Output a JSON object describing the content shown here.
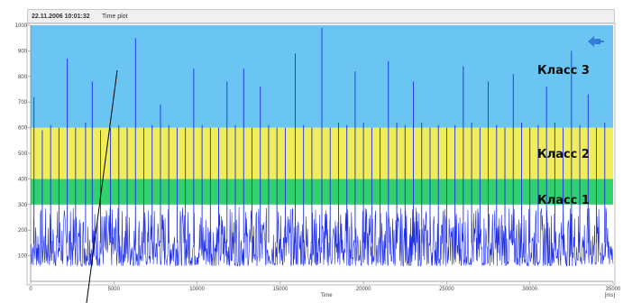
{
  "header": {
    "timestamp": "22.11.2006 10:01:32",
    "plot_title": "Time plot"
  },
  "icon": {
    "name": "rewind-arrow-icon",
    "color": "#2a6fd6"
  },
  "chart_data": {
    "type": "line",
    "title": "",
    "xlabel": "Time",
    "x_unit": "[ms]",
    "ylabel": "",
    "xlim": [
      0,
      35000
    ],
    "ylim": [
      0,
      1000
    ],
    "x_ticks": [
      0,
      5000,
      10000,
      15000,
      20000,
      25000,
      30000,
      35000
    ],
    "y_ticks": [
      100,
      200,
      300,
      400,
      500,
      600,
      700,
      800,
      900,
      1000
    ],
    "x_tick_labels": [
      "0",
      "5000",
      "10000",
      "15000",
      "20000",
      "25000",
      "30000",
      "35000"
    ],
    "y_tick_labels": [
      "100",
      "200",
      "300",
      "400",
      "500",
      "600",
      "700",
      "800",
      "900",
      "1000"
    ],
    "grid": false,
    "bands": [
      {
        "name": "Класс 1",
        "y_range": [
          300,
          400
        ],
        "color": "#33d070"
      },
      {
        "name": "Класс 2",
        "y_range": [
          400,
          600
        ],
        "color": "#f0ec5a"
      },
      {
        "name": "Класс 3",
        "y_range": [
          600,
          1000
        ],
        "color": "#6bc5f2"
      }
    ],
    "series": [
      {
        "color": "#1e2ee6",
        "baseline": {
          "low": 60,
          "high": 290
        },
        "spikes": [
          {
            "x": 200,
            "y": 720
          },
          {
            "x": 700,
            "y": 590
          },
          {
            "x": 1200,
            "y": 610
          },
          {
            "x": 1700,
            "y": 600
          },
          {
            "x": 2200,
            "y": 870
          },
          {
            "x": 2700,
            "y": 600
          },
          {
            "x": 3300,
            "y": 620
          },
          {
            "x": 3700,
            "y": 780
          },
          {
            "x": 4200,
            "y": 590
          },
          {
            "x": 4800,
            "y": 600
          },
          {
            "x": 5300,
            "y": 610
          },
          {
            "x": 5800,
            "y": 600
          },
          {
            "x": 6300,
            "y": 950
          },
          {
            "x": 6800,
            "y": 600
          },
          {
            "x": 7300,
            "y": 610
          },
          {
            "x": 7800,
            "y": 690
          },
          {
            "x": 8300,
            "y": 610
          },
          {
            "x": 8800,
            "y": 600
          },
          {
            "x": 9300,
            "y": 600
          },
          {
            "x": 9800,
            "y": 830
          },
          {
            "x": 10300,
            "y": 610
          },
          {
            "x": 10800,
            "y": 600
          },
          {
            "x": 11300,
            "y": 600
          },
          {
            "x": 11800,
            "y": 780
          },
          {
            "x": 12300,
            "y": 610
          },
          {
            "x": 12800,
            "y": 830
          },
          {
            "x": 13300,
            "y": 600
          },
          {
            "x": 13800,
            "y": 760
          },
          {
            "x": 14300,
            "y": 610
          },
          {
            "x": 14800,
            "y": 600
          },
          {
            "x": 15300,
            "y": 600
          },
          {
            "x": 15900,
            "y": 890
          },
          {
            "x": 16400,
            "y": 610
          },
          {
            "x": 16900,
            "y": 600
          },
          {
            "x": 17500,
            "y": 990
          },
          {
            "x": 18000,
            "y": 600
          },
          {
            "x": 18500,
            "y": 620
          },
          {
            "x": 19000,
            "y": 610
          },
          {
            "x": 19500,
            "y": 820
          },
          {
            "x": 20000,
            "y": 620
          },
          {
            "x": 20500,
            "y": 600
          },
          {
            "x": 21000,
            "y": 600
          },
          {
            "x": 21500,
            "y": 860
          },
          {
            "x": 22000,
            "y": 620
          },
          {
            "x": 22500,
            "y": 610
          },
          {
            "x": 23000,
            "y": 780
          },
          {
            "x": 23500,
            "y": 620
          },
          {
            "x": 24000,
            "y": 600
          },
          {
            "x": 24500,
            "y": 610
          },
          {
            "x": 25000,
            "y": 600
          },
          {
            "x": 25500,
            "y": 610
          },
          {
            "x": 26000,
            "y": 840
          },
          {
            "x": 26500,
            "y": 620
          },
          {
            "x": 27000,
            "y": 600
          },
          {
            "x": 27500,
            "y": 780
          },
          {
            "x": 28000,
            "y": 610
          },
          {
            "x": 28500,
            "y": 600
          },
          {
            "x": 29000,
            "y": 810
          },
          {
            "x": 29500,
            "y": 620
          },
          {
            "x": 30000,
            "y": 600
          },
          {
            "x": 30500,
            "y": 610
          },
          {
            "x": 31000,
            "y": 760
          },
          {
            "x": 31500,
            "y": 620
          },
          {
            "x": 32000,
            "y": 600
          },
          {
            "x": 32500,
            "y": 900
          },
          {
            "x": 33000,
            "y": 610
          },
          {
            "x": 33500,
            "y": 730
          },
          {
            "x": 34000,
            "y": 600
          },
          {
            "x": 34500,
            "y": 620
          }
        ]
      }
    ]
  }
}
